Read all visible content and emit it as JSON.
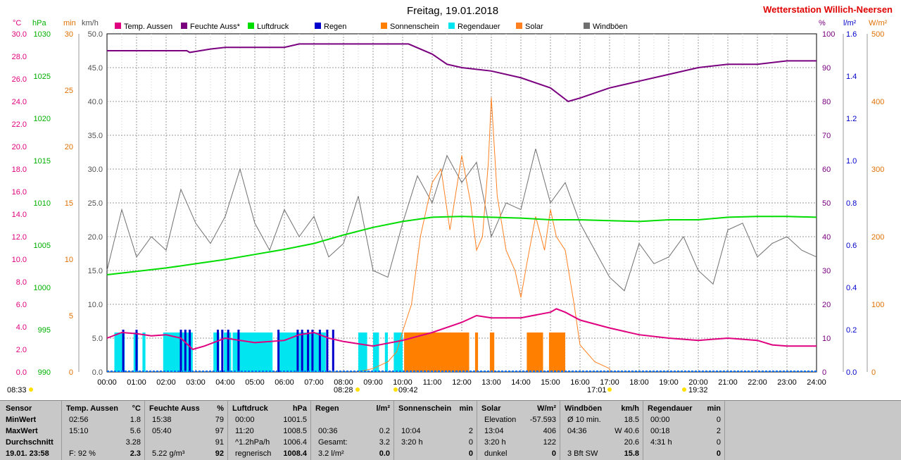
{
  "title": "Freitag, 19.01.2018",
  "station": "Wetterstation Willich-Neersen",
  "units": {
    "temp": "°C",
    "press": "hPa",
    "min": "min",
    "kmh": "km/h",
    "pct": "%",
    "lm2": "l/m²",
    "wm2": "W/m²"
  },
  "legend": [
    {
      "label": "Temp. Aussen",
      "color": "#e0007f"
    },
    {
      "label": "Feuchte Auss*",
      "color": "#7a0080"
    },
    {
      "label": "Luftdruck",
      "color": "#00dd00"
    },
    {
      "label": "Regen",
      "color": "#0000cc"
    },
    {
      "label": "Sonnenschein",
      "color": "#ff8000"
    },
    {
      "label": "Regendauer",
      "color": "#00e5f0"
    },
    {
      "label": "Solar",
      "color": "#ff8020"
    },
    {
      "label": "Windböen",
      "color": "#707070"
    }
  ],
  "axes": {
    "temp": {
      "ticks": [
        "30.0",
        "28.0",
        "26.0",
        "24.0",
        "22.0",
        "20.0",
        "18.0",
        "16.0",
        "14.0",
        "12.0",
        "10.0",
        "8.0",
        "6.0",
        "4.0",
        "2.0",
        "0.0"
      ]
    },
    "press": {
      "ticks": [
        "1030",
        "1025",
        "1020",
        "1015",
        "1010",
        "1005",
        "1000",
        "995",
        "990"
      ]
    },
    "min": {
      "ticks": [
        "30",
        "25",
        "20",
        "15",
        "10",
        "5",
        "0"
      ]
    },
    "kmh": {
      "ticks": [
        "50.0",
        "45.0",
        "40.0",
        "35.0",
        "30.0",
        "25.0",
        "20.0",
        "15.0",
        "10.0",
        "5.0",
        "0.0"
      ]
    },
    "pct": {
      "ticks": [
        "100",
        "90",
        "80",
        "70",
        "60",
        "50",
        "40",
        "30",
        "20",
        "10",
        "0"
      ]
    },
    "lm2": {
      "ticks": [
        "1.6",
        "1.4",
        "1.2",
        "1.0",
        "0.8",
        "0.6",
        "0.4",
        "0.2",
        "0.0"
      ]
    },
    "wm2": {
      "ticks": [
        "500",
        "400",
        "300",
        "200",
        "100",
        "0"
      ]
    },
    "time": [
      "00:00",
      "01:00",
      "02:00",
      "03:00",
      "04:00",
      "05:00",
      "06:00",
      "07:00",
      "08:00",
      "09:00",
      "10:00",
      "11:00",
      "12:00",
      "13:00",
      "14:00",
      "15:00",
      "16:00",
      "17:00",
      "18:00",
      "19:00",
      "20:00",
      "21:00",
      "22:00",
      "23:00",
      "24:00"
    ]
  },
  "markers": {
    "moonrise": "08:33",
    "sunrise": "08:28",
    "solar_noon": "09:42",
    "sunset": "17:01",
    "moonset": "19:32"
  },
  "chart_data": {
    "type": "line",
    "x_unit": "hours",
    "series": [
      {
        "name": "Feuchte Auss*",
        "unit": "%",
        "x": [
          0,
          2.7,
          2.8,
          3.5,
          4,
          6,
          6.5,
          8,
          10.2,
          11,
          11.5,
          12,
          13,
          14,
          15,
          15.6,
          16,
          17,
          18,
          19,
          20,
          21,
          22,
          23,
          24
        ],
        "values": [
          95,
          95,
          94.5,
          95.5,
          96,
          96,
          97,
          97,
          97,
          94,
          91,
          90,
          89,
          87,
          84,
          80,
          81,
          84,
          86,
          88,
          90,
          91,
          91,
          92,
          92
        ]
      },
      {
        "name": "Luftdruck",
        "unit": "hPa",
        "x": [
          0,
          1,
          2,
          3,
          4,
          5,
          6,
          7,
          8,
          9,
          10,
          11,
          12,
          13,
          14,
          15,
          16,
          17,
          18,
          19,
          20,
          21,
          22,
          23,
          24
        ],
        "values": [
          1001.5,
          1001.9,
          1002.3,
          1002.8,
          1003.3,
          1003.9,
          1004.5,
          1005.2,
          1006.2,
          1007.1,
          1007.8,
          1008.3,
          1008.4,
          1008.3,
          1008.2,
          1008.0,
          1008.0,
          1007.9,
          1007.8,
          1008.0,
          1008.0,
          1008.3,
          1008.4,
          1008.4,
          1008.3
        ]
      },
      {
        "name": "Temp. Aussen",
        "unit": "°C",
        "x": [
          0,
          0.5,
          1,
          1.5,
          2,
          2.5,
          2.9,
          3.3,
          4,
          5,
          6,
          6.5,
          7,
          7.5,
          8,
          9,
          10,
          11,
          12,
          12.5,
          13,
          14,
          15,
          15.2,
          15.5,
          16,
          17,
          18,
          19,
          20,
          21,
          22,
          22.5,
          23,
          24
        ],
        "values": [
          3.0,
          3.5,
          3.4,
          3.2,
          3.3,
          3.0,
          2.0,
          2.3,
          3.0,
          2.6,
          2.8,
          3.3,
          3.5,
          3.0,
          2.7,
          2.3,
          2.8,
          3.5,
          4.4,
          5.0,
          4.8,
          4.8,
          5.3,
          5.6,
          5.3,
          4.6,
          3.9,
          3.3,
          3.0,
          2.8,
          3.0,
          2.8,
          2.4,
          2.3,
          2.3
        ]
      },
      {
        "name": "Windböen",
        "unit": "km/h",
        "x": [
          0,
          0.5,
          1,
          1.5,
          2,
          2.5,
          3,
          3.5,
          4,
          4.5,
          5,
          5.5,
          6,
          6.5,
          7,
          7.5,
          8,
          8.5,
          9,
          9.5,
          10,
          10.5,
          11,
          11.5,
          12,
          12.5,
          13,
          13.5,
          14,
          14.5,
          15,
          15.5,
          16,
          16.5,
          17,
          17.5,
          18,
          18.5,
          19,
          19.5,
          20,
          20.5,
          21,
          21.5,
          22,
          22.5,
          23,
          23.5,
          24
        ],
        "values": [
          15,
          24,
          17,
          20,
          18,
          27,
          22,
          19,
          23,
          30,
          22,
          18,
          24,
          20,
          23,
          17,
          19,
          26,
          15,
          14,
          22,
          29,
          25,
          32,
          28,
          31,
          20,
          25,
          24,
          33,
          25,
          28,
          22,
          18,
          14,
          12,
          19,
          16,
          17,
          20,
          15,
          13,
          21,
          22,
          17,
          19,
          20,
          18,
          17
        ]
      },
      {
        "name": "Solar",
        "unit": "W/m²",
        "x": [
          8.47,
          9,
          9.5,
          9.8,
          10,
          10.3,
          10.6,
          11,
          11.3,
          11.6,
          12,
          12.3,
          12.5,
          12.7,
          12.9,
          13,
          13.2,
          13.5,
          13.8,
          14,
          14.2,
          14.5,
          14.8,
          15,
          15.2,
          15.5,
          15.8,
          16,
          16.5,
          17,
          17.02
        ],
        "values": [
          0,
          5,
          15,
          30,
          60,
          100,
          200,
          280,
          300,
          210,
          320,
          250,
          180,
          200,
          310,
          406,
          260,
          180,
          150,
          110,
          160,
          230,
          180,
          240,
          200,
          180,
          100,
          40,
          15,
          5,
          0
        ]
      }
    ],
    "bars": [
      {
        "name": "Regen",
        "unit": "l/m²",
        "times": [
          0.55,
          1,
          2.5,
          2.65,
          2.8,
          3.75,
          3.9,
          4.1,
          4.45,
          5.8,
          6.45,
          6.6,
          6.8,
          6.95,
          7.2,
          7.45,
          7.65
        ]
      },
      {
        "name": "Regendauer",
        "unit": "min",
        "ranges": [
          [
            0.25,
            0.6
          ],
          [
            0.9,
            1.05
          ],
          [
            1.2,
            1.3
          ],
          [
            1.9,
            2.9
          ],
          [
            3.6,
            3.8
          ],
          [
            3.95,
            4.2
          ],
          [
            4.25,
            5.6
          ],
          [
            5.8,
            7.4
          ],
          [
            8.5,
            8.8
          ],
          [
            9.0,
            9.2
          ],
          [
            9.4,
            9.5
          ],
          [
            9.7,
            10.0
          ]
        ]
      },
      {
        "name": "Sonnenschein",
        "unit": "min",
        "ranges": [
          [
            10.05,
            11.75
          ],
          [
            11.75,
            12.25
          ],
          [
            12.45,
            12.55
          ],
          [
            12.95,
            13.1
          ],
          [
            14.2,
            14.75
          ],
          [
            14.95,
            15.5
          ]
        ]
      }
    ],
    "xlim": [
      0,
      24
    ],
    "ylim_kmh": [
      0,
      50
    ],
    "grid": true,
    "legend_position": "top"
  },
  "table": {
    "headers": {
      "sensor": "Sensor",
      "temp": [
        "Temp. Aussen",
        "°C"
      ],
      "feuchte": [
        "Feuchte Auss",
        "%"
      ],
      "luftdruck": [
        "Luftdruck",
        "hPa"
      ],
      "regen": [
        "Regen",
        "l/m²"
      ],
      "sonne": [
        "Sonnenschein",
        "min"
      ],
      "solar": [
        "Solar",
        "W/m²"
      ],
      "wind": [
        "Windböen",
        "km/h"
      ],
      "regendauer": [
        "Regendauer",
        "min"
      ]
    },
    "rows": [
      {
        "label": "MinWert",
        "temp": [
          "02:56",
          "1.8"
        ],
        "feuchte": [
          "15:38",
          "79"
        ],
        "luftdruck": [
          "00:00",
          "1001.5"
        ],
        "regen": [
          "",
          ""
        ],
        "sonne": [
          "",
          ""
        ],
        "solar": [
          "Elevation",
          "-57.593"
        ],
        "wind": [
          "Ø 10 min.",
          "18.5"
        ],
        "regendauer": [
          "00:00",
          "0"
        ]
      },
      {
        "label": "MaxWert",
        "temp": [
          "15:10",
          "5.6"
        ],
        "feuchte": [
          "05:40",
          "97"
        ],
        "luftdruck": [
          "11:20",
          "1008.5"
        ],
        "regen": [
          "00:36",
          "0.2"
        ],
        "sonne": [
          "10:04",
          "2"
        ],
        "solar": [
          "13:04",
          "406"
        ],
        "wind": [
          "04:36",
          "W 40.6"
        ],
        "regendauer": [
          "00:18",
          "2"
        ]
      },
      {
        "label": "Durchschnitt",
        "temp": [
          "",
          "3.28"
        ],
        "feuchte": [
          "",
          "91"
        ],
        "luftdruck": [
          "^1.2hPa/h",
          "1006.4"
        ],
        "regen": [
          "Gesamt:",
          "3.2"
        ],
        "sonne": [
          "3:20 h",
          "0"
        ],
        "solar": [
          "3:20 h",
          "122"
        ],
        "wind": [
          "",
          "20.6"
        ],
        "regendauer": [
          "4:31 h",
          "0"
        ]
      },
      {
        "label": "19.01. 23:58",
        "temp": [
          "F: 92 %",
          "2.3"
        ],
        "feuchte": [
          "5.22 g/m³",
          "92"
        ],
        "luftdruck": [
          "regnerisch",
          "1008.4"
        ],
        "regen": [
          "3.2 l/m²",
          "0.0"
        ],
        "sonne": [
          "",
          "0"
        ],
        "solar": [
          "dunkel",
          "0"
        ],
        "wind": [
          "3 Bft SW",
          "15.8"
        ],
        "regendauer": [
          "",
          "0"
        ]
      }
    ]
  }
}
